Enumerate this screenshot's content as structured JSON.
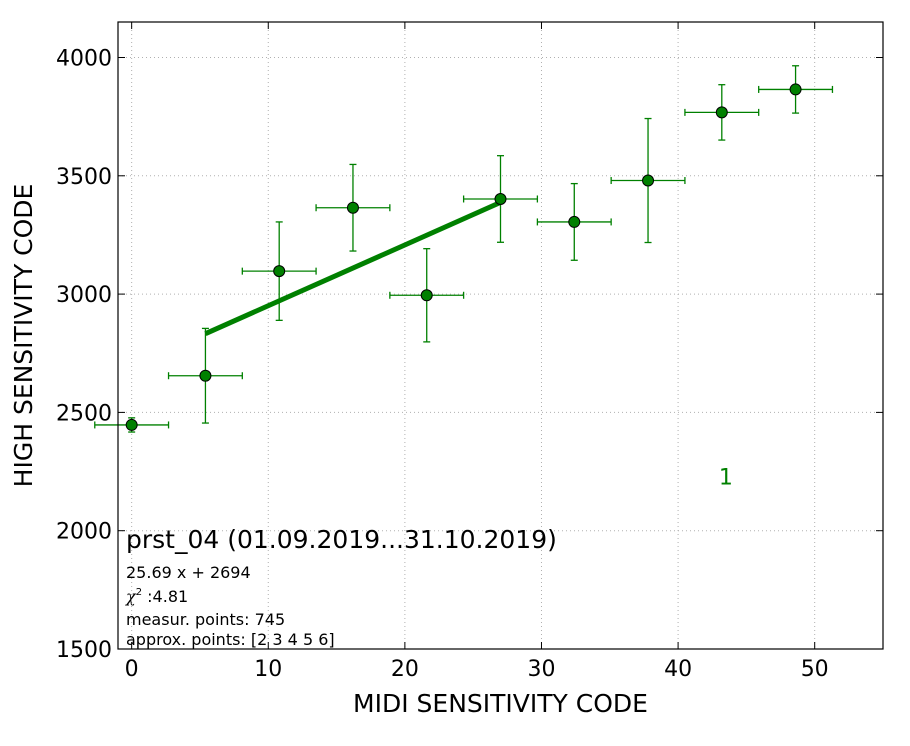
{
  "chart_data": {
    "type": "scatter",
    "xlabel": "MIDI SENSITIVITY CODE",
    "ylabel": "HIGH SENSITIVITY CODE",
    "xlim": [
      -1,
      55
    ],
    "ylim": [
      1500,
      4150
    ],
    "xticks": [
      "0",
      "10",
      "20",
      "30",
      "40",
      "50"
    ],
    "yticks": [
      "1500",
      "2000",
      "2500",
      "3000",
      "3500",
      "4000"
    ],
    "grid": true,
    "color": "#008000",
    "points": [
      {
        "x": 0.0,
        "y": 2447,
        "xerr": 2.7,
        "yerr": 30
      },
      {
        "x": 5.4,
        "y": 2655,
        "xerr": 2.7,
        "yerr": 200
      },
      {
        "x": 10.8,
        "y": 3097,
        "xerr": 2.7,
        "yerr": 208
      },
      {
        "x": 16.2,
        "y": 3365,
        "xerr": 2.7,
        "yerr": 183
      },
      {
        "x": 21.6,
        "y": 2995,
        "xerr": 2.7,
        "yerr": 197
      },
      {
        "x": 27.0,
        "y": 3402,
        "xerr": 2.7,
        "yerr": 183
      },
      {
        "x": 32.4,
        "y": 3305,
        "xerr": 2.7,
        "yerr": 162
      },
      {
        "x": 37.8,
        "y": 3480,
        "xerr": 2.7,
        "yerr": 262
      },
      {
        "x": 43.2,
        "y": 3768,
        "xerr": 2.7,
        "yerr": 117
      },
      {
        "x": 48.6,
        "y": 3865,
        "xerr": 2.7,
        "yerr": 100
      }
    ],
    "fit_line": {
      "slope": 25.69,
      "intercept": 2694,
      "x_range": [
        5.4,
        27.0
      ]
    },
    "marker_label": {
      "text": "1",
      "x": 43.5,
      "y": 2230
    },
    "annotations": {
      "title": "prst_04 (01.09.2019...31.10.2019)",
      "equation": "25.69 x + 2694",
      "chi_symbol": "χ",
      "chi_superscript": "2",
      "chi_value": " :4.81",
      "measur_points": "measur. points: 745",
      "approx_points": "approx. points: [2 3 4 5 6]"
    }
  }
}
